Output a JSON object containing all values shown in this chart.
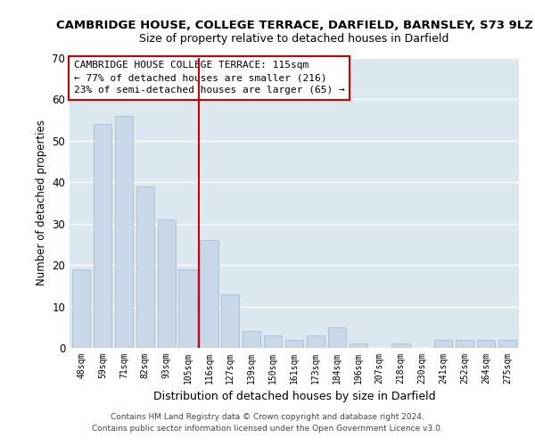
{
  "title": "CAMBRIDGE HOUSE, COLLEGE TERRACE, DARFIELD, BARNSLEY, S73 9LZ",
  "subtitle": "Size of property relative to detached houses in Darfield",
  "xlabel": "Distribution of detached houses by size in Darfield",
  "ylabel": "Number of detached properties",
  "bar_labels": [
    "48sqm",
    "59sqm",
    "71sqm",
    "82sqm",
    "93sqm",
    "105sqm",
    "116sqm",
    "127sqm",
    "139sqm",
    "150sqm",
    "161sqm",
    "173sqm",
    "184sqm",
    "196sqm",
    "207sqm",
    "218sqm",
    "230sqm",
    "241sqm",
    "252sqm",
    "264sqm",
    "275sqm"
  ],
  "bar_values": [
    19,
    54,
    56,
    39,
    31,
    19,
    26,
    13,
    4,
    3,
    2,
    3,
    5,
    1,
    0,
    1,
    0,
    2,
    2,
    2,
    2
  ],
  "bar_color": "#c8d8e8",
  "bar_edge_color": "#a0b8cc",
  "highlight_index": 6,
  "highlight_line_color": "#cc0000",
  "ylim": [
    0,
    70
  ],
  "yticks": [
    0,
    10,
    20,
    30,
    40,
    50,
    60,
    70
  ],
  "annotation_title": "CAMBRIDGE HOUSE COLLEGE TERRACE: 115sqm",
  "annotation_line1": "← 77% of detached houses are smaller (216)",
  "annotation_line2": "23% of semi-detached houses are larger (65) →",
  "annotation_box_color": "#ffffff",
  "annotation_box_edge": "#cc0000",
  "footer_line1": "Contains HM Land Registry data © Crown copyright and database right 2024.",
  "footer_line2": "Contains public sector information licensed under the Open Government Licence v3.0.",
  "bg_color": "#ffffff",
  "plot_bg_color": "#dce8f0",
  "grid_color": "#ffffff",
  "title_fontsize": 9.5,
  "subtitle_fontsize": 9.0
}
